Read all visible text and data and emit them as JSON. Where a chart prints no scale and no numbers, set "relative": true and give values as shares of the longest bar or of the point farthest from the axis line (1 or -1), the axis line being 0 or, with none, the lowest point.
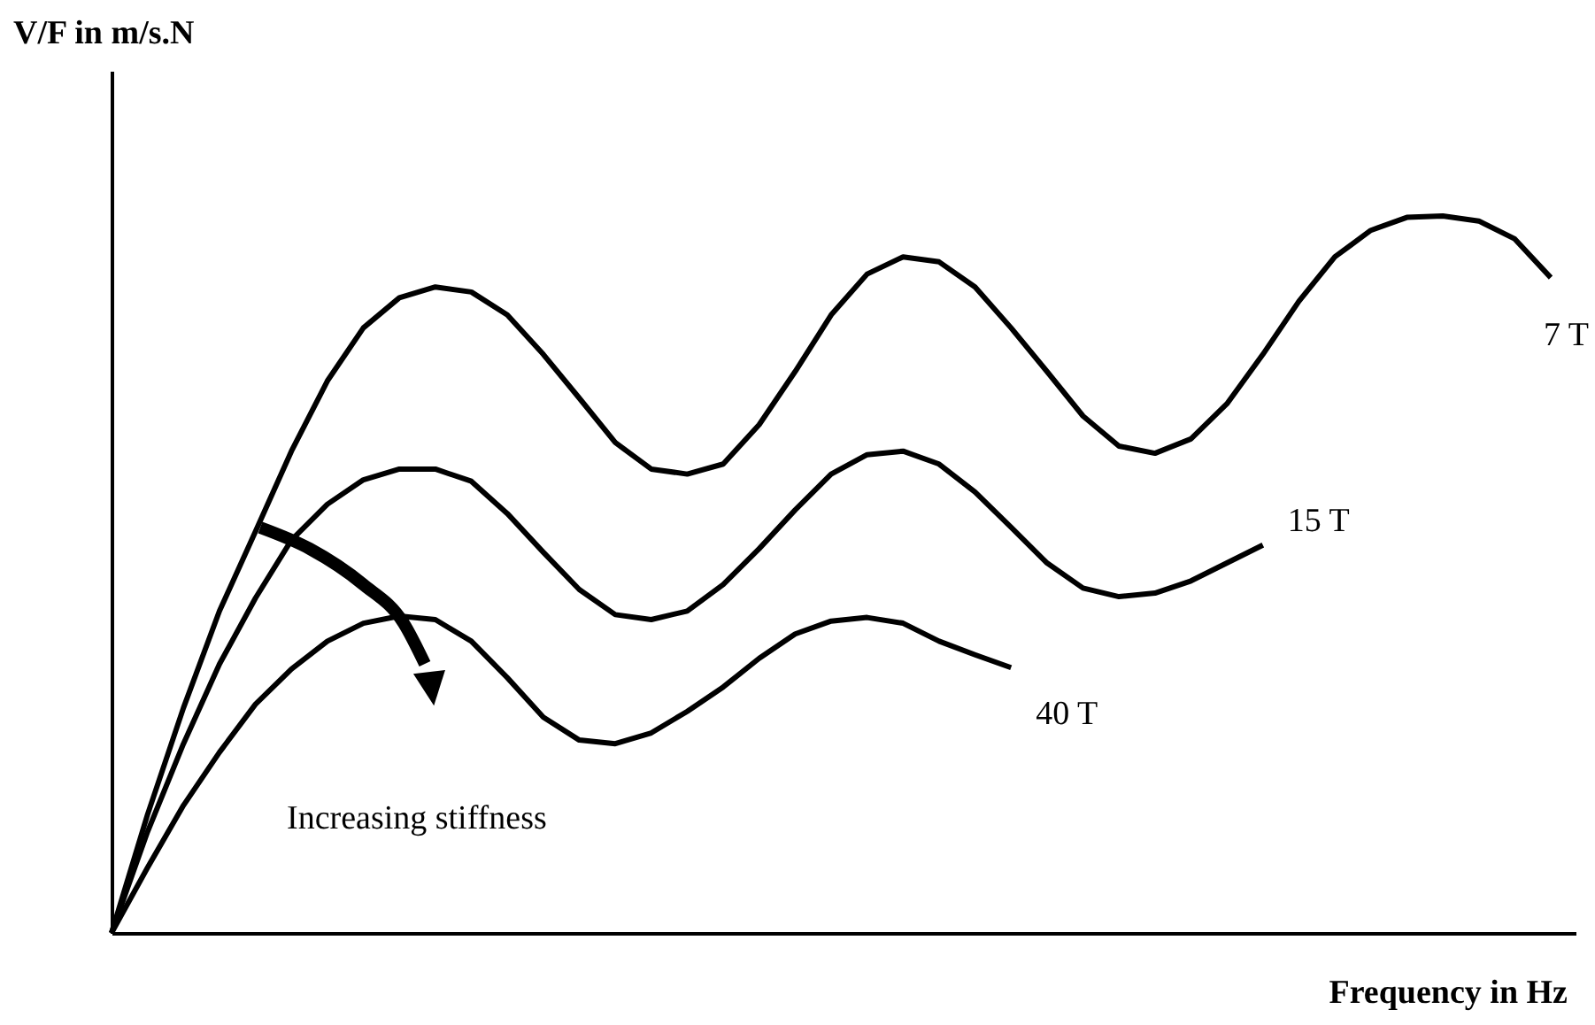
{
  "chart_data": {
    "type": "line",
    "relative": true,
    "xlabel": "Frequency in Hz",
    "ylabel": "V/F in m/s.N",
    "categories": [
      null,
      null,
      null,
      null,
      null,
      null,
      null,
      null,
      null,
      null,
      null,
      null,
      null,
      null,
      null,
      null,
      null,
      null,
      null,
      null,
      null,
      null,
      null,
      null,
      null,
      null,
      null,
      null,
      null,
      null,
      null,
      null,
      null,
      null,
      null,
      null,
      null,
      null,
      null,
      null,
      null
    ],
    "series": [
      {
        "name": "7 T",
        "color": "#000000",
        "values": [
          0,
          0.165,
          0.314,
          0.449,
          0.56,
          0.672,
          0.77,
          0.844,
          0.886,
          0.901,
          0.894,
          0.862,
          0.807,
          0.746,
          0.684,
          0.647,
          0.64,
          0.654,
          0.709,
          0.783,
          0.862,
          0.919,
          0.943,
          0.936,
          0.901,
          0.844,
          0.783,
          0.721,
          0.679,
          0.669,
          0.689,
          0.738,
          0.807,
          0.881,
          0.943,
          0.98,
          0.998,
          1,
          0.993,
          0.968,
          0.914
        ]
      },
      {
        "name": "15 T",
        "color": "#000000",
        "values": [
          0,
          0.141,
          0.264,
          0.375,
          0.467,
          0.548,
          0.598,
          0.632,
          0.647,
          0.647,
          0.63,
          0.585,
          0.531,
          0.479,
          0.444,
          0.437,
          0.449,
          0.486,
          0.536,
          0.59,
          0.64,
          0.667,
          0.672,
          0.654,
          0.615,
          0.566,
          0.516,
          0.481,
          0.469,
          0.474,
          0.491,
          0.516,
          0.541,
          null,
          null,
          null,
          null,
          null,
          null,
          null,
          null
        ]
      },
      {
        "name": "40 T",
        "color": "#000000",
        "values": [
          0,
          0.091,
          0.178,
          0.252,
          0.319,
          0.368,
          0.407,
          0.432,
          0.442,
          0.437,
          0.407,
          0.356,
          0.301,
          0.269,
          0.264,
          0.279,
          0.309,
          0.343,
          0.383,
          0.417,
          0.435,
          0.44,
          0.432,
          0.407,
          0.388,
          0.37,
          null,
          null,
          null,
          null,
          null,
          null,
          null,
          null,
          null,
          null,
          null,
          null,
          null,
          null,
          null
        ]
      }
    ],
    "annotations": [
      "Increasing stiffness"
    ],
    "grid": false,
    "marker": "none",
    "line_style": "solid"
  }
}
